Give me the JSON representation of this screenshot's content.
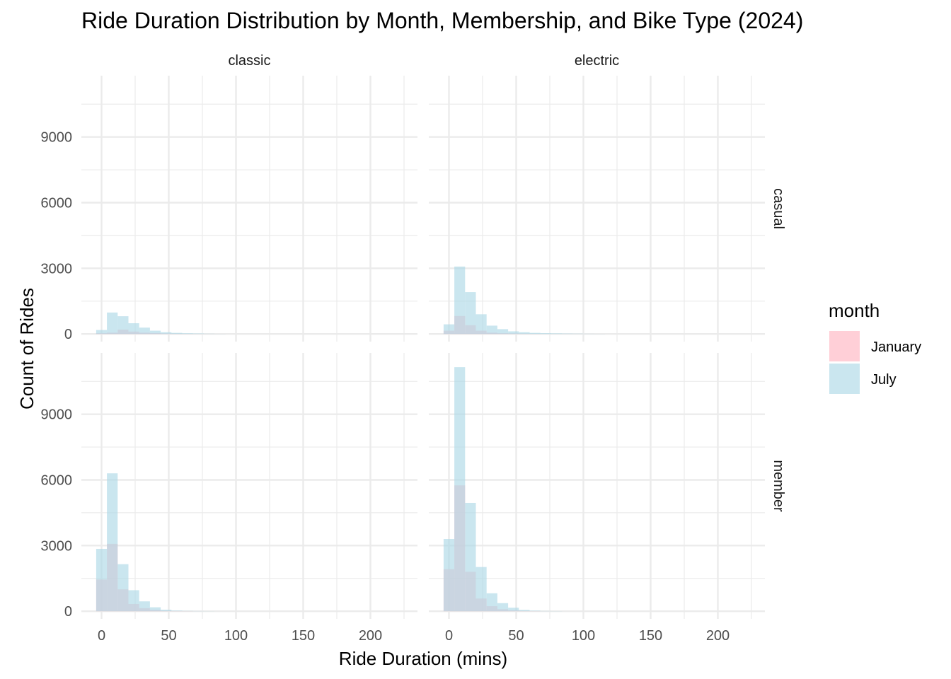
{
  "chart_data": {
    "type": "histogram",
    "title": "Ride Duration Distribution by Month, Membership, and Bike Type (2024)",
    "xlabel": "Ride Duration (mins)",
    "ylabel": "Count of Rides",
    "x_ticks": [
      0,
      50,
      100,
      150,
      200
    ],
    "y_ticks": [
      0,
      3000,
      6000,
      9000
    ],
    "xlim": [
      -15,
      235
    ],
    "ylim": [
      -350,
      11800
    ],
    "bin_width": 8,
    "bin_start": -4,
    "grid": true,
    "legend": {
      "title": "month",
      "position": "right",
      "entries": [
        {
          "name": "January",
          "color": "#FFB6C1"
        },
        {
          "name": "July",
          "color": "#ADD8E6"
        }
      ]
    },
    "facet_columns": [
      "classic",
      "electric"
    ],
    "facet_rows": [
      "casual",
      "member"
    ],
    "panels": [
      {
        "membership": "casual",
        "bike_type": "classic",
        "series": [
          {
            "name": "January",
            "counts": [
              30,
              60,
              200,
              110,
              60,
              40,
              20,
              10,
              5,
              3,
              2,
              1
            ]
          },
          {
            "name": "July",
            "counts": [
              180,
              980,
              810,
              490,
              290,
              150,
              80,
              50,
              30,
              20,
              10,
              5
            ]
          }
        ]
      },
      {
        "membership": "casual",
        "bike_type": "electric",
        "series": [
          {
            "name": "January",
            "counts": [
              150,
              820,
              400,
              150,
              60,
              30,
              20,
              10,
              5
            ]
          },
          {
            "name": "July",
            "counts": [
              440,
              3080,
              1910,
              900,
              380,
              220,
              120,
              80,
              50,
              35,
              25,
              18,
              12,
              8,
              5
            ]
          }
        ]
      },
      {
        "membership": "member",
        "bike_type": "classic",
        "series": [
          {
            "name": "January",
            "counts": [
              1450,
              3080,
              1000,
              330,
              140,
              60,
              20,
              10,
              5
            ]
          },
          {
            "name": "July",
            "counts": [
              2850,
              6300,
              2150,
              960,
              450,
              180,
              70,
              30,
              15,
              8,
              4
            ]
          }
        ]
      },
      {
        "membership": "member",
        "bike_type": "electric",
        "series": [
          {
            "name": "January",
            "counts": [
              1920,
              5750,
              1800,
              580,
              230,
              90,
              40,
              15,
              5
            ]
          },
          {
            "name": "July",
            "counts": [
              3300,
              11150,
              4950,
              2020,
              820,
              370,
              160,
              60,
              25,
              10,
              5
            ]
          }
        ]
      }
    ]
  }
}
